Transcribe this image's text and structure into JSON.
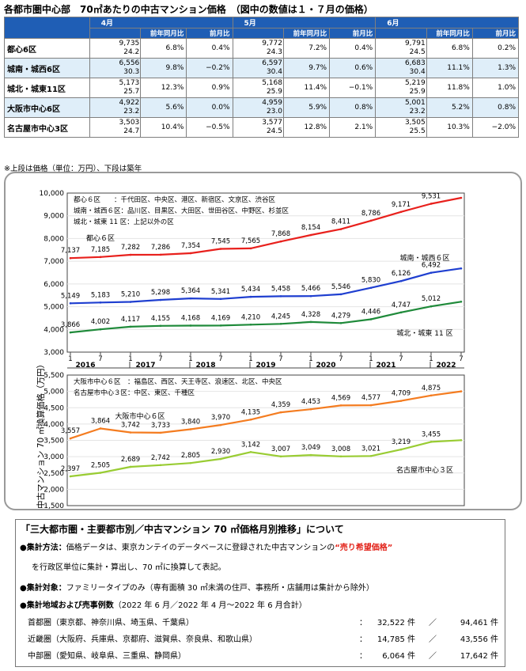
{
  "page_title": "各都市圏中心部　70㎡あたりの中古マンション価格　（図中の数値は１・７月の価格）",
  "table": {
    "months": [
      "4月",
      "5月",
      "6月"
    ],
    "sub_headers": [
      "前年同月比",
      "前月比"
    ],
    "rows": [
      {
        "area": "都心6区",
        "cells": [
          {
            "price": "9,735",
            "age": "24.2",
            "yoy": "6.8%",
            "mom": "0.4%"
          },
          {
            "price": "9,772",
            "age": "24.3",
            "yoy": "7.2%",
            "mom": "0.4%"
          },
          {
            "price": "9,791",
            "age": "24.5",
            "yoy": "6.8%",
            "mom": "0.2%"
          }
        ]
      },
      {
        "area": "城南・城西6区",
        "cells": [
          {
            "price": "6,556",
            "age": "30.3",
            "yoy": "9.8%",
            "mom": "−0.2%"
          },
          {
            "price": "6,597",
            "age": "30.4",
            "yoy": "9.7%",
            "mom": "0.6%"
          },
          {
            "price": "6,683",
            "age": "30.4",
            "yoy": "11.1%",
            "mom": "1.3%"
          }
        ]
      },
      {
        "area": "城北・城東11区",
        "cells": [
          {
            "price": "5,173",
            "age": "25.7",
            "yoy": "12.3%",
            "mom": "0.9%"
          },
          {
            "price": "5,168",
            "age": "25.9",
            "yoy": "11.4%",
            "mom": "−0.1%"
          },
          {
            "price": "5,219",
            "age": "25.9",
            "yoy": "11.8%",
            "mom": "1.0%"
          }
        ]
      },
      {
        "area": "大阪市中心6区",
        "cells": [
          {
            "price": "4,922",
            "age": "23.2",
            "yoy": "5.6%",
            "mom": "0.0%"
          },
          {
            "price": "4,959",
            "age": "23.0",
            "yoy": "5.9%",
            "mom": "0.8%"
          },
          {
            "price": "5,001",
            "age": "23.2",
            "yoy": "5.2%",
            "mom": "0.8%"
          }
        ]
      },
      {
        "area": "名古屋市中心3区",
        "cells": [
          {
            "price": "3,503",
            "age": "24.7",
            "yoy": "10.4%",
            "mom": "−0.5%"
          },
          {
            "price": "3,577",
            "age": "24.5",
            "yoy": "12.8%",
            "mom": "2.1%"
          },
          {
            "price": "3,505",
            "age": "25.5",
            "yoy": "10.3%",
            "mom": "−2.0%"
          }
        ]
      }
    ]
  },
  "note": "※上段は価格（単位：万円）、下段は築年",
  "chart_data": [
    {
      "type": "line",
      "ylabel": "中古マンション 70 ㎡換算価格（万円）",
      "ylim": [
        3000,
        10000
      ],
      "yticks": [
        "3,000",
        "4,000",
        "5,000",
        "6,000",
        "7,000",
        "8,000",
        "9,000",
        "10,000"
      ],
      "x_tick_labels": [
        "1",
        "7",
        "1",
        "7",
        "1",
        "7",
        "1",
        "7",
        "1",
        "7",
        "1",
        "7",
        "1",
        "7"
      ],
      "year_labels": [
        "2016",
        "2017",
        "2018",
        "2019",
        "2020",
        "2021",
        "2022"
      ],
      "legend_lines": [
        "都心６区　　：千代田区、中央区、港区、新宿区、文京区、渋谷区",
        "城南・城西６区：品川区、目黒区、大田区、世田谷区、中野区、杉並区",
        "城北・城東 11 区：上記以外の区"
      ],
      "series": [
        {
          "name": "都心６区",
          "color": "#e8201c",
          "values": [
            7137,
            7185,
            7282,
            7286,
            7354,
            7545,
            7565,
            7868,
            8154,
            8411,
            8786,
            9171,
            9531,
            9791
          ]
        },
        {
          "name": "城南・城西６区",
          "color": "#1f3fd0",
          "values": [
            5149,
            5183,
            5210,
            5298,
            5364,
            5341,
            5434,
            5458,
            5466,
            5546,
            5830,
            6126,
            6492,
            6683
          ]
        },
        {
          "name": "城北・城東 11 区",
          "color": "#1f8a3a",
          "values": [
            3866,
            4002,
            4117,
            4155,
            4168,
            4169,
            4210,
            4245,
            4328,
            4279,
            4446,
            4747,
            5012,
            5219
          ]
        }
      ]
    },
    {
      "type": "line",
      "ylim": [
        1500,
        5500
      ],
      "yticks": [
        "1,500",
        "2,000",
        "2,500",
        "3,000",
        "3,500",
        "4,000",
        "4,500",
        "5,000",
        "5,500"
      ],
      "legend_lines": [
        "大阪市中心６区　：福島区、西区、天王寺区、浪速区、北区、中央区",
        "名古屋市中心３区：中区、東区、千種区"
      ],
      "series": [
        {
          "name": "大阪市中心６区",
          "color": "#f47c20",
          "values": [
            3557,
            3864,
            3742,
            3733,
            3840,
            3970,
            4135,
            4359,
            4453,
            4569,
            4577,
            4709,
            4875,
            5001
          ]
        },
        {
          "name": "名古屋市中心３区",
          "color": "#99cc33",
          "values": [
            2397,
            2505,
            2689,
            2742,
            2805,
            2930,
            3142,
            3007,
            3049,
            3008,
            3021,
            3219,
            3455,
            3505
          ]
        }
      ]
    }
  ],
  "about": {
    "title": "「三大都市圏・主要都市別／中古マンション 70 ㎡価格月別推移」について",
    "method_label": "●集計方法：",
    "method_text1": "価格データは、東京カンテイのデータベースに登録された中古マンションの",
    "method_highlight": "“売り希望価格”",
    "method_text2": "を行政区単位に集計・算出し、70 ㎡に換算して表記。",
    "target_label": "●集計対象：",
    "target_text": "ファミリータイプのみ（専有面積 30 ㎡未満の住戸、事務所・店舗用は集計から除外）",
    "region_label": "●集計地域および売事例数",
    "region_period": "（2022 年 6 月／2022 年 4 月～2022 年 6 月合計）",
    "stats": [
      {
        "region": "首都圏（東京都、神奈川県、埼玉県、千葉県）",
        "c1": "32,522 件",
        "c2": "94,461 件"
      },
      {
        "region": "近畿圏（大阪府、兵庫県、京都府、滋賀県、奈良県、和歌山県）",
        "c1": "14,785 件",
        "c2": "43,556 件"
      },
      {
        "region": "中部圏（愛知県、岐阜県、三重県、静岡県）",
        "c1": "6,064 件",
        "c2": "17,642 件"
      }
    ],
    "colon": "：",
    "slash": "／"
  }
}
